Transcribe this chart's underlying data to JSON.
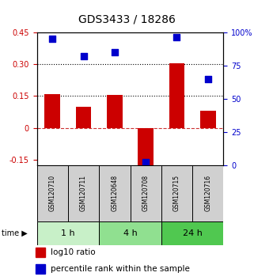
{
  "title": "GDS3433 / 18286",
  "samples": [
    "GSM120710",
    "GSM120711",
    "GSM120648",
    "GSM120708",
    "GSM120715",
    "GSM120716"
  ],
  "groups": [
    {
      "label": "1 h",
      "indices": [
        0,
        1
      ],
      "color": "#c8f0c8"
    },
    {
      "label": "4 h",
      "indices": [
        2,
        3
      ],
      "color": "#90e090"
    },
    {
      "label": "24 h",
      "indices": [
        4,
        5
      ],
      "color": "#50c850"
    }
  ],
  "log10_ratio": [
    0.16,
    0.1,
    0.155,
    -0.175,
    0.305,
    0.08
  ],
  "percentile_rank": [
    95,
    82,
    85,
    2,
    96,
    65
  ],
  "ylim_left": [
    -0.175,
    0.45
  ],
  "ylim_right": [
    0,
    100
  ],
  "yticks_left": [
    -0.15,
    0,
    0.15,
    0.3,
    0.45
  ],
  "yticks_right": [
    0,
    25,
    50,
    75,
    100
  ],
  "hlines_dotted": [
    0.15,
    0.3
  ],
  "hline_dashed": 0,
  "bar_color": "#cc0000",
  "dot_color": "#0000cc",
  "bar_width": 0.5,
  "dot_size": 28,
  "left_tick_color": "#cc0000",
  "right_tick_color": "#0000cc",
  "sample_box_color": "#d0d0d0",
  "title_fontsize": 10,
  "tick_fontsize": 7,
  "sample_fontsize": 5.5,
  "time_fontsize": 8,
  "legend_fontsize": 7.5
}
